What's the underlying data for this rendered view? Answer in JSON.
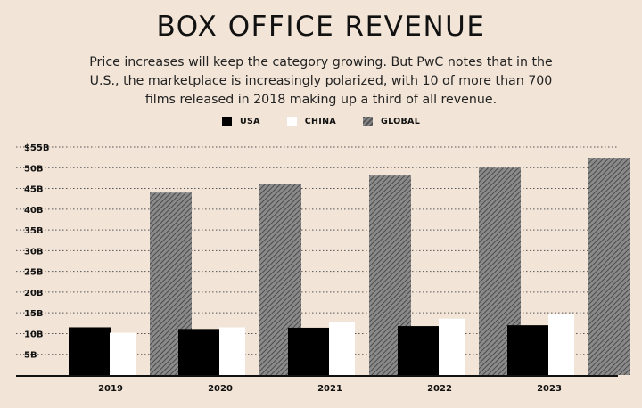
{
  "title": "BOX OFFICE REVENUE",
  "subtitle": "Price increases will keep the category growing. But PwC notes that in the U.S., the marketplace is increasingly polarized, with 10 of more than 700 films released in 2018 making up a third of all revenue.",
  "legend": [
    {
      "label": "USA",
      "key": "usa"
    },
    {
      "label": "CHINA",
      "key": "china"
    },
    {
      "label": "GLOBAL",
      "key": "global"
    }
  ],
  "colors": {
    "usa": "#000000",
    "china": "#ffffff",
    "global": "#6e6e6e",
    "background": "#f2e4d6"
  },
  "chart_data": {
    "type": "bar",
    "categories": [
      "2019",
      "2020",
      "2021",
      "2022",
      "2023"
    ],
    "series": [
      {
        "name": "USA",
        "values": [
          11.5,
          11.1,
          11.4,
          11.8,
          12.0
        ]
      },
      {
        "name": "CHINA",
        "values": [
          10.2,
          11.5,
          12.8,
          13.6,
          14.7
        ]
      },
      {
        "name": "GLOBAL",
        "values": [
          44.0,
          46.0,
          48.1,
          50.0,
          52.4
        ]
      }
    ],
    "yticks": [
      "5B",
      "10B",
      "15B",
      "20B",
      "25B",
      "30B",
      "35B",
      "40B",
      "45B",
      "50B",
      "$55B"
    ],
    "ylim": [
      0,
      55
    ],
    "grid": true,
    "legend_position": "top"
  }
}
